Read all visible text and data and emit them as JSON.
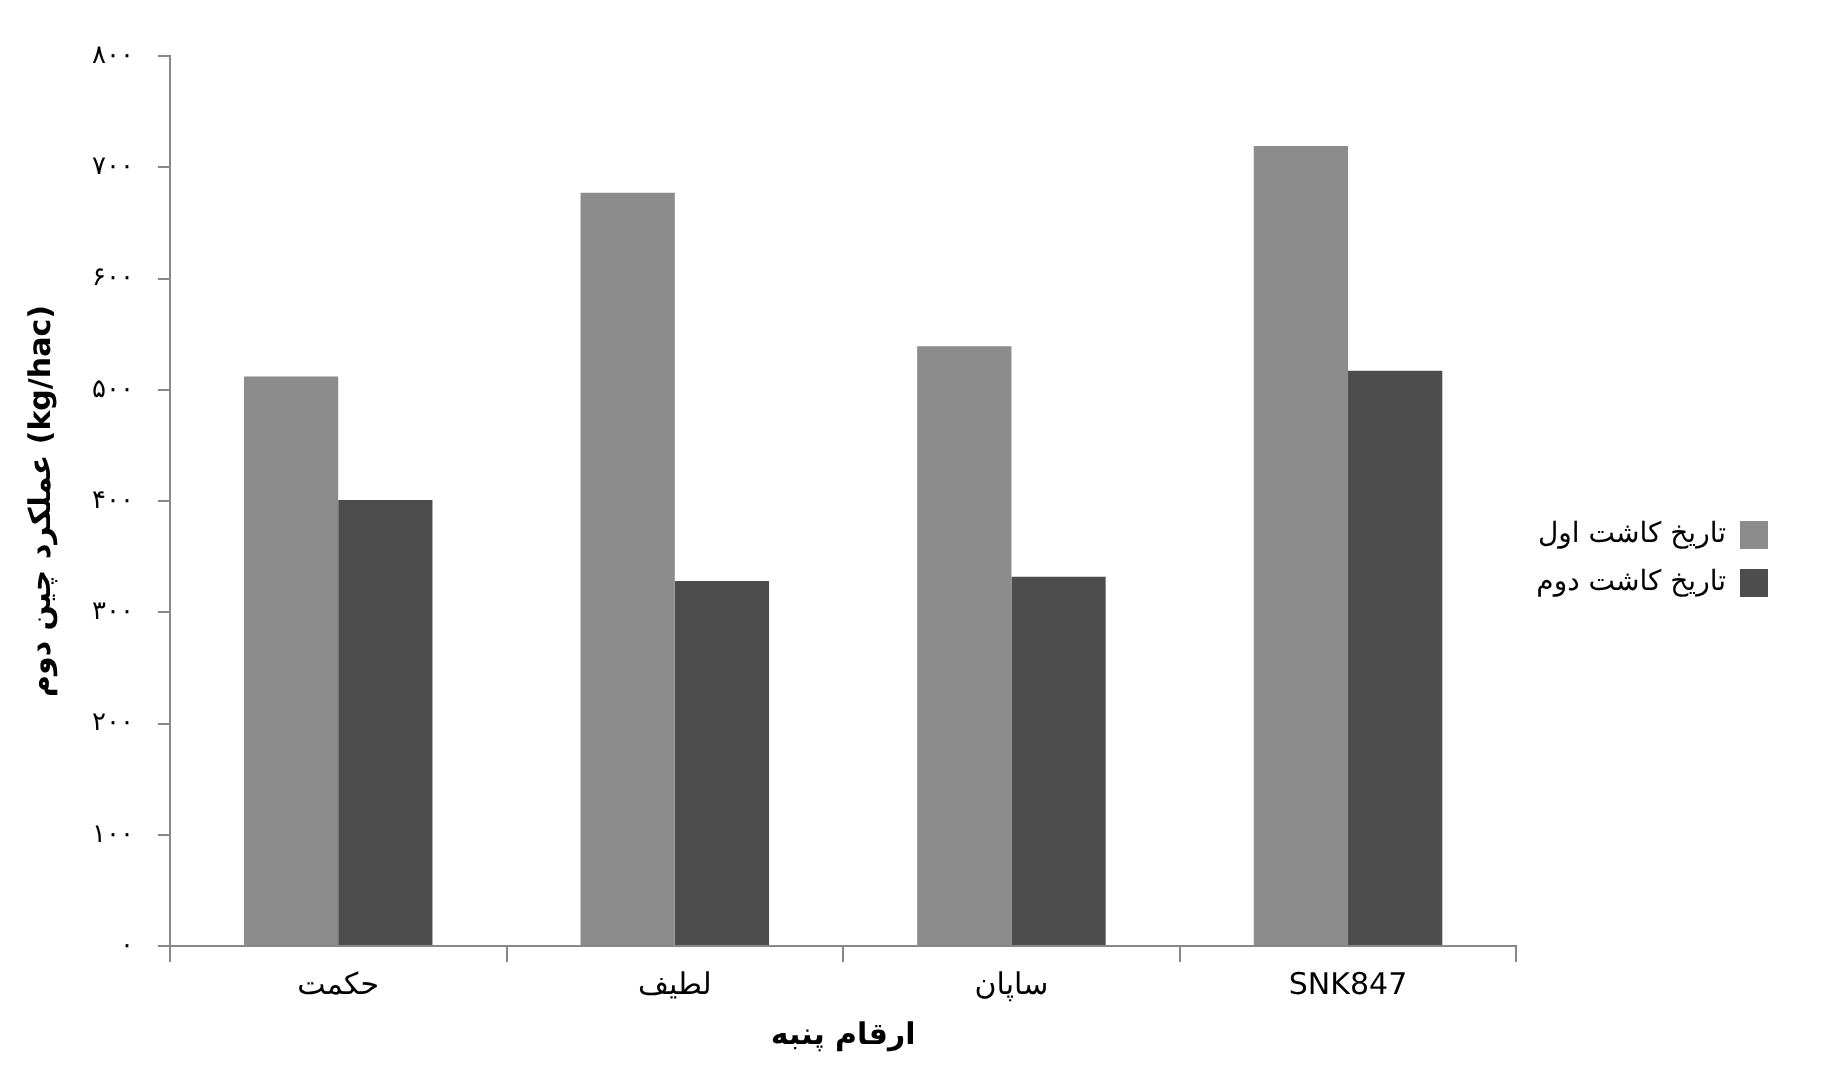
{
  "chart_data": {
    "type": "bar",
    "xlabel": "ارقام پنبه",
    "ylabel": "عملکرد چین دوم (kg/hac)",
    "categories": [
      "حکمت",
      "لطیف",
      "ساپان",
      "SNK847"
    ],
    "series": [
      {
        "name": "تاریخ کاشت اول",
        "color": "#8c8c8c",
        "values": [
          512,
          677,
          539,
          719
        ]
      },
      {
        "name": "تاریخ کاشت دوم",
        "color": "#4d4d4d",
        "values": [
          401,
          328,
          332,
          517
        ]
      }
    ],
    "ylim": [
      0,
      800
    ],
    "yticks": [
      {
        "value": 0,
        "label": "۰"
      },
      {
        "value": 100,
        "label": "۱۰۰"
      },
      {
        "value": 200,
        "label": "۲۰۰"
      },
      {
        "value": 300,
        "label": "۳۰۰"
      },
      {
        "value": 400,
        "label": "۴۰۰"
      },
      {
        "value": 500,
        "label": "۵۰۰"
      },
      {
        "value": 600,
        "label": "۶۰۰"
      },
      {
        "value": 700,
        "label": "۷۰۰"
      },
      {
        "value": 800,
        "label": "۸۰۰"
      }
    ],
    "grid": false,
    "legend": "right"
  }
}
